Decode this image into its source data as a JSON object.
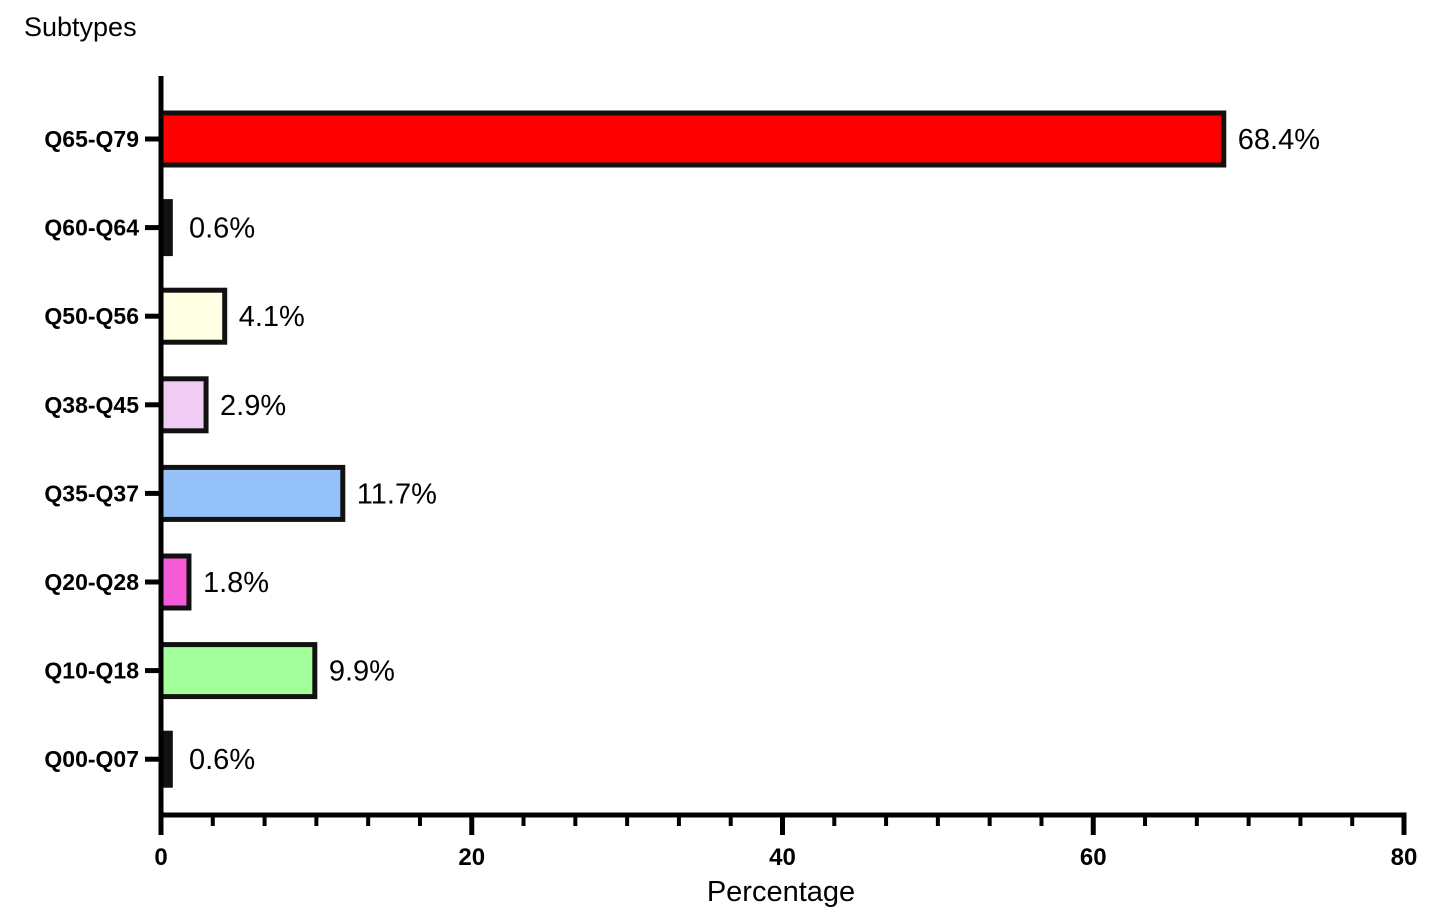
{
  "chart_data": {
    "type": "bar",
    "orientation": "horizontal",
    "ylabel": "Subtypes",
    "xlabel": "Percentage",
    "xlim": [
      0,
      80
    ],
    "xticks": [
      0,
      20,
      40,
      60,
      80
    ],
    "minor_ticks_per_major": 5,
    "grid": false,
    "categories": [
      "Q65-Q79",
      "Q60-Q64",
      "Q50-Q56",
      "Q38-Q45",
      "Q35-Q37",
      "Q20-Q28",
      "Q10-Q18",
      "Q00-Q07"
    ],
    "values": [
      68.4,
      0.6,
      4.1,
      2.9,
      11.7,
      1.8,
      9.9,
      0.6
    ],
    "labels": [
      "68.4%",
      "0.6%",
      "4.1%",
      "2.9%",
      "11.7%",
      "1.8%",
      "9.9%",
      "0.6%"
    ],
    "colors": [
      "#ff0000",
      "#111111",
      "#ffffe4",
      "#f0ccf5",
      "#94c1f8",
      "#f55bd6",
      "#a3ff9c",
      "#111111"
    ]
  }
}
